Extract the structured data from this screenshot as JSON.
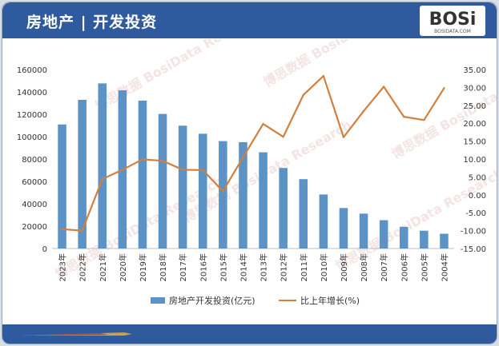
{
  "header": {
    "title": "房地产 | 开发投资",
    "logo_text": "BOSi",
    "logo_sub": "BOSIDATA.COM"
  },
  "watermark": "博思数据 BosiData Research",
  "legend": {
    "bar_label": "房地产开发投资(亿元)",
    "line_label": "比上年增长(%)"
  },
  "colors": {
    "bar": "#5b93c7",
    "line": "#d1803f",
    "header": "#2f5a9e"
  },
  "chart_data": {
    "type": "bar",
    "categories": [
      "2023年",
      "2022年",
      "2021年",
      "2020年",
      "2019年",
      "2018年",
      "2017年",
      "2016年",
      "2015年",
      "2014年",
      "2013年",
      "2012年",
      "2011年",
      "2010年",
      "2009年",
      "2008年",
      "2007年",
      "2006年",
      "2005年",
      "2004年"
    ],
    "series": [
      {
        "name": "房地产开发投资(亿元)",
        "type": "bar",
        "axis": "left",
        "values": [
          110900,
          132900,
          147600,
          141400,
          132200,
          120300,
          109800,
          102600,
          96000,
          95000,
          86000,
          72000,
          62000,
          48300,
          36200,
          31200,
          25300,
          19400,
          15900,
          13200
        ]
      },
      {
        "name": "比上年增长(%)",
        "type": "line",
        "axis": "right",
        "values": [
          -9.6,
          -10.0,
          4.4,
          7.0,
          9.9,
          9.5,
          7.0,
          6.9,
          1.0,
          10.5,
          19.8,
          16.2,
          27.9,
          33.2,
          16.1,
          23.4,
          30.2,
          21.8,
          20.9,
          29.8
        ]
      }
    ],
    "y_left": {
      "min": 0,
      "max": 160000,
      "step": 20000,
      "ticks": [
        "0",
        "20000",
        "40000",
        "60000",
        "80000",
        "100000",
        "120000",
        "140000",
        "160000"
      ]
    },
    "y_right": {
      "min": -15,
      "max": 35,
      "step": 5,
      "ticks": [
        "-15.00",
        "-10.00",
        "-5.00",
        "0.00",
        "5.00",
        "10.00",
        "15.00",
        "20.00",
        "25.00",
        "30.00",
        "35.00"
      ]
    },
    "grid": false,
    "legend_position": "bottom"
  }
}
